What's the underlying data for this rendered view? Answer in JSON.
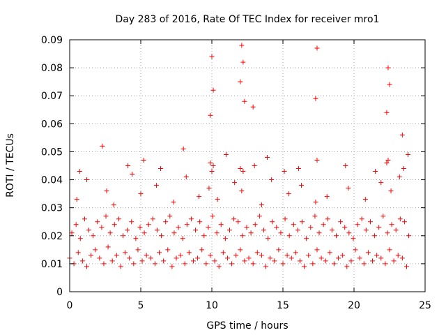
{
  "chart_data": {
    "type": "scatter",
    "title": "Day 283 of 2016, Rate Of TEC Index for receiver mro1",
    "xlabel": "GPS time / hours",
    "ylabel": "ROTI / TECUs",
    "xlim": [
      0,
      25
    ],
    "ylim": [
      0,
      0.09
    ],
    "xticks": [
      0,
      5,
      10,
      15,
      20,
      25
    ],
    "xtick_labels": [
      "0",
      "5",
      "10",
      "15",
      "20",
      "25"
    ],
    "yticks": [
      0,
      0.01,
      0.02,
      0.03,
      0.04,
      0.05,
      0.06,
      0.07,
      0.08,
      0.09
    ],
    "ytick_labels": [
      "0",
      "0.01",
      "0.02",
      "0.03",
      "0.04",
      "0.05",
      "0.06",
      "0.07",
      "0.08",
      "0.09"
    ],
    "grid": true,
    "marker": "plus",
    "color": "#ff0000",
    "series": [
      {
        "name": "ROTI",
        "x": [
          0.0,
          0.3,
          0.6,
          0.9,
          1.2,
          1.5,
          1.8,
          2.1,
          2.4,
          2.7,
          3.0,
          3.3,
          3.6,
          3.9,
          4.2,
          4.5,
          4.8,
          5.1,
          5.4,
          5.7,
          6.0,
          6.3,
          6.6,
          6.9,
          7.2,
          7.5,
          7.8,
          8.1,
          8.4,
          8.7,
          9.0,
          9.3,
          9.6,
          9.9,
          10.2,
          10.5,
          10.8,
          11.1,
          11.4,
          11.7,
          12.0,
          12.3,
          12.6,
          12.9,
          13.2,
          13.5,
          13.8,
          14.1,
          14.4,
          14.7,
          15.0,
          15.3,
          15.6,
          15.9,
          16.2,
          16.5,
          16.8,
          17.1,
          17.4,
          17.7,
          18.0,
          18.3,
          18.6,
          18.9,
          19.2,
          19.5,
          19.8,
          20.1,
          20.4,
          20.7,
          21.0,
          21.3,
          21.6,
          21.9,
          22.2,
          22.5,
          22.8,
          23.1,
          23.4,
          23.7,
          0.15,
          0.45,
          0.75,
          1.05,
          1.35,
          1.65,
          1.95,
          2.25,
          2.55,
          2.85,
          3.15,
          3.45,
          3.75,
          4.05,
          4.35,
          4.65,
          4.95,
          5.25,
          5.55,
          5.85,
          6.15,
          6.45,
          6.75,
          7.05,
          7.35,
          7.65,
          7.95,
          8.25,
          8.55,
          8.85,
          9.15,
          9.45,
          9.75,
          10.05,
          10.35,
          10.65,
          10.95,
          11.25,
          11.55,
          11.85,
          12.15,
          12.45,
          12.75,
          13.05,
          13.35,
          13.65,
          13.95,
          14.25,
          14.55,
          14.85,
          15.15,
          15.45,
          15.75,
          16.05,
          16.35,
          16.65,
          16.95,
          17.25,
          17.55,
          17.85,
          18.15,
          18.45,
          18.75,
          19.05,
          19.35,
          19.65,
          19.95,
          20.25,
          20.55,
          20.85,
          21.15,
          21.45,
          21.75,
          22.05,
          22.35,
          22.65,
          22.95,
          23.25,
          23.55,
          23.85,
          0.5,
          1.2,
          2.6,
          3.1,
          4.4,
          5.0,
          6.1,
          7.3,
          8.2,
          9.1,
          9.8,
          10.4,
          11.6,
          12.1,
          13.5,
          14.2,
          15.4,
          16.3,
          17.3,
          18.1,
          19.6,
          20.8,
          21.9,
          22.6,
          23.2,
          0.7,
          2.3,
          4.1,
          5.2,
          6.4,
          8.0,
          9.9,
          10.0,
          10.1,
          11.0,
          12.0,
          12.2,
          13.0,
          13.9,
          15.1,
          16.1,
          17.4,
          19.4,
          21.5,
          22.3,
          22.4,
          23.5,
          23.8,
          9.9,
          10.0,
          10.1,
          12.0,
          12.1,
          12.2,
          12.3,
          12.9,
          17.3,
          17.4,
          22.3,
          22.4,
          22.5,
          23.4
        ],
        "y": [
          0.012,
          0.01,
          0.014,
          0.011,
          0.009,
          0.013,
          0.015,
          0.012,
          0.01,
          0.016,
          0.011,
          0.013,
          0.009,
          0.014,
          0.012,
          0.01,
          0.015,
          0.011,
          0.013,
          0.012,
          0.01,
          0.014,
          0.011,
          0.015,
          0.009,
          0.012,
          0.013,
          0.01,
          0.014,
          0.011,
          0.012,
          0.015,
          0.01,
          0.013,
          0.011,
          0.009,
          0.014,
          0.012,
          0.01,
          0.013,
          0.015,
          0.011,
          0.012,
          0.01,
          0.014,
          0.013,
          0.009,
          0.012,
          0.011,
          0.015,
          0.01,
          0.013,
          0.012,
          0.014,
          0.011,
          0.009,
          0.013,
          0.01,
          0.015,
          0.012,
          0.011,
          0.014,
          0.01,
          0.012,
          0.013,
          0.009,
          0.011,
          0.015,
          0.012,
          0.01,
          0.014,
          0.011,
          0.013,
          0.012,
          0.01,
          0.015,
          0.011,
          0.013,
          0.012,
          0.009,
          0.021,
          0.024,
          0.019,
          0.026,
          0.022,
          0.02,
          0.025,
          0.023,
          0.027,
          0.021,
          0.024,
          0.026,
          0.02,
          0.022,
          0.025,
          0.019,
          0.023,
          0.021,
          0.024,
          0.026,
          0.022,
          0.02,
          0.025,
          0.027,
          0.021,
          0.023,
          0.019,
          0.024,
          0.026,
          0.022,
          0.025,
          0.02,
          0.023,
          0.027,
          0.021,
          0.024,
          0.019,
          0.022,
          0.026,
          0.025,
          0.02,
          0.023,
          0.021,
          0.024,
          0.027,
          0.022,
          0.019,
          0.025,
          0.023,
          0.021,
          0.026,
          0.02,
          0.024,
          0.022,
          0.025,
          0.019,
          0.023,
          0.027,
          0.021,
          0.024,
          0.026,
          0.022,
          0.02,
          0.025,
          0.023,
          0.021,
          0.019,
          0.024,
          0.026,
          0.022,
          0.025,
          0.02,
          0.023,
          0.027,
          0.021,
          0.024,
          0.022,
          0.026,
          0.025,
          0.02,
          0.033,
          0.04,
          0.036,
          0.031,
          0.042,
          0.035,
          0.038,
          0.032,
          0.041,
          0.034,
          0.037,
          0.033,
          0.039,
          0.036,
          0.031,
          0.04,
          0.035,
          0.038,
          0.032,
          0.034,
          0.037,
          0.033,
          0.039,
          0.036,
          0.041,
          0.043,
          0.052,
          0.045,
          0.047,
          0.044,
          0.051,
          0.046,
          0.043,
          0.045,
          0.049,
          0.044,
          0.043,
          0.045,
          0.048,
          0.043,
          0.044,
          0.047,
          0.045,
          0.043,
          0.046,
          0.047,
          0.044,
          0.049,
          0.063,
          0.084,
          0.072,
          0.075,
          0.088,
          0.082,
          0.068,
          0.066,
          0.069,
          0.087,
          0.064,
          0.08,
          0.074,
          0.056
        ]
      }
    ]
  }
}
